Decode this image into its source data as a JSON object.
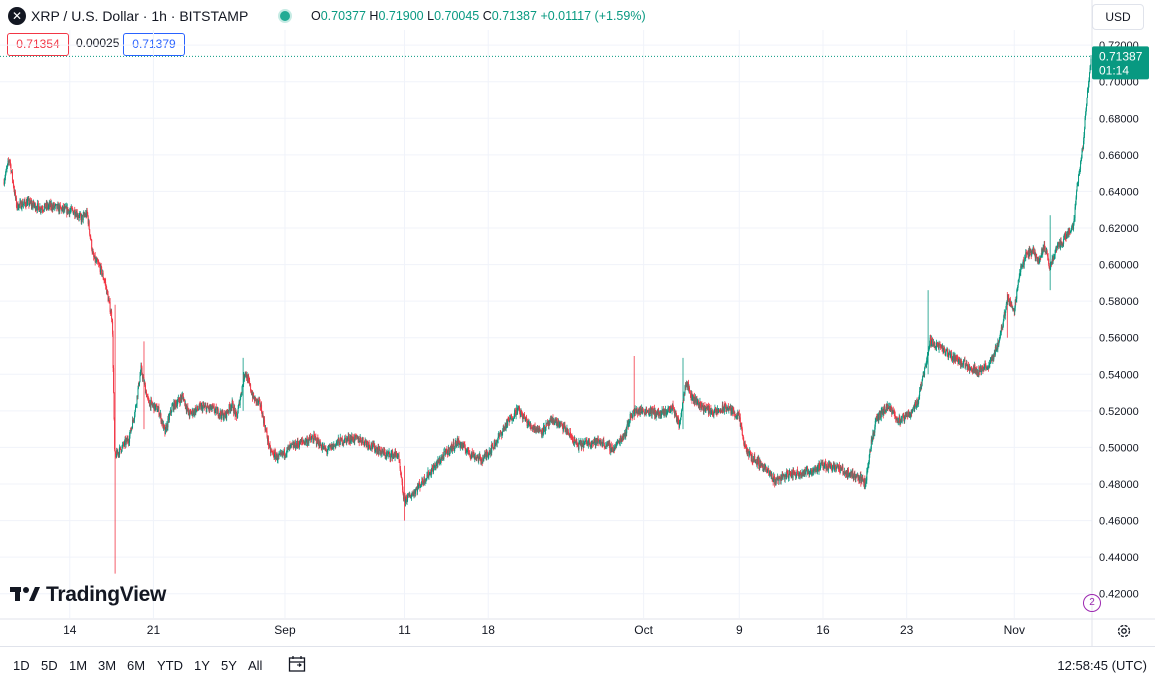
{
  "header": {
    "symbol_icon": "x-logo-icon",
    "title": "XRP / U.S. Dollar · 1h · BITSTAMP",
    "ohlc": {
      "o_label": "O",
      "o": "0.70377",
      "h_label": "H",
      "h": "0.71900",
      "l_label": "L",
      "l": "0.70045",
      "c_label": "C",
      "c": "0.71387",
      "change": "+0.01117 (+1.59%)"
    },
    "bid": "0.71354",
    "spread": "0.00025",
    "ask": "0.71379",
    "currency": "USD"
  },
  "colors": {
    "up": "#089981",
    "down": "#f23645",
    "price_tag": "#089981",
    "grid": "#f0f3fa"
  },
  "price_tag": {
    "price": "0.71387",
    "countdown": "01:14"
  },
  "branding": {
    "name": "TradingView"
  },
  "bottom": {
    "timeframes": [
      "1D",
      "5D",
      "1M",
      "3M",
      "6M",
      "YTD",
      "1Y",
      "5Y",
      "All"
    ],
    "clock": "12:58:45 (UTC)"
  },
  "chart_data": {
    "type": "candlestick",
    "interval": "1h",
    "ylim": [
      0.41,
      0.725
    ],
    "y_ticks": [
      "0.42000",
      "0.44000",
      "0.46000",
      "0.48000",
      "0.50000",
      "0.52000",
      "0.54000",
      "0.56000",
      "0.58000",
      "0.60000",
      "0.62000",
      "0.64000",
      "0.66000",
      "0.68000",
      "0.70000",
      "0.72000"
    ],
    "x_ticks": [
      {
        "label": "14",
        "day": 14
      },
      {
        "label": "21",
        "day": 21
      },
      {
        "label": "Sep",
        "day": 32
      },
      {
        "label": "11",
        "day": 42
      },
      {
        "label": "18",
        "day": 49
      },
      {
        "label": "Oct",
        "day": 62
      },
      {
        "label": "9",
        "day": 70
      },
      {
        "label": "16",
        "day": 77
      },
      {
        "label": "23",
        "day": 84
      },
      {
        "label": "Nov",
        "day": 93
      }
    ],
    "x_domain_days": [
      8.5,
      99.5
    ],
    "close_path": [
      [
        8.5,
        0.645
      ],
      [
        9.0,
        0.658
      ],
      [
        9.6,
        0.632
      ],
      [
        10.5,
        0.634
      ],
      [
        11.5,
        0.631
      ],
      [
        12.5,
        0.632
      ],
      [
        13.5,
        0.63
      ],
      [
        14.5,
        0.629
      ],
      [
        15.0,
        0.625
      ],
      [
        15.5,
        0.628
      ],
      [
        16.0,
        0.604
      ],
      [
        16.6,
        0.598
      ],
      [
        17.0,
        0.59
      ],
      [
        17.6,
        0.57
      ],
      [
        17.8,
        0.495
      ],
      [
        18.4,
        0.5
      ],
      [
        19.0,
        0.505
      ],
      [
        19.5,
        0.52
      ],
      [
        20.0,
        0.543
      ],
      [
        20.6,
        0.525
      ],
      [
        21.5,
        0.52
      ],
      [
        22.0,
        0.508
      ],
      [
        22.6,
        0.522
      ],
      [
        23.5,
        0.528
      ],
      [
        24.0,
        0.518
      ],
      [
        25.0,
        0.522
      ],
      [
        26.0,
        0.521
      ],
      [
        27.0,
        0.517
      ],
      [
        27.6,
        0.524
      ],
      [
        28.0,
        0.516
      ],
      [
        28.7,
        0.542
      ],
      [
        29.4,
        0.527
      ],
      [
        30.0,
        0.523
      ],
      [
        30.8,
        0.498
      ],
      [
        31.5,
        0.494
      ],
      [
        32.5,
        0.5
      ],
      [
        33.5,
        0.503
      ],
      [
        34.5,
        0.505
      ],
      [
        35.5,
        0.498
      ],
      [
        36.5,
        0.503
      ],
      [
        37.5,
        0.505
      ],
      [
        38.5,
        0.504
      ],
      [
        39.5,
        0.5
      ],
      [
        40.5,
        0.496
      ],
      [
        41.5,
        0.496
      ],
      [
        42.0,
        0.471
      ],
      [
        42.6,
        0.474
      ],
      [
        43.5,
        0.481
      ],
      [
        44.5,
        0.489
      ],
      [
        45.5,
        0.497
      ],
      [
        46.5,
        0.503
      ],
      [
        47.5,
        0.497
      ],
      [
        48.5,
        0.493
      ],
      [
        49.5,
        0.501
      ],
      [
        50.5,
        0.512
      ],
      [
        51.5,
        0.521
      ],
      [
        52.5,
        0.512
      ],
      [
        53.5,
        0.509
      ],
      [
        54.5,
        0.515
      ],
      [
        55.5,
        0.51
      ],
      [
        56.5,
        0.501
      ],
      [
        57.5,
        0.503
      ],
      [
        58.5,
        0.503
      ],
      [
        59.5,
        0.499
      ],
      [
        60.5,
        0.508
      ],
      [
        61.0,
        0.518
      ],
      [
        61.5,
        0.52
      ],
      [
        62.5,
        0.52
      ],
      [
        63.5,
        0.518
      ],
      [
        64.5,
        0.522
      ],
      [
        65.0,
        0.512
      ],
      [
        65.6,
        0.537
      ],
      [
        66.0,
        0.528
      ],
      [
        67.0,
        0.522
      ],
      [
        68.0,
        0.519
      ],
      [
        69.0,
        0.522
      ],
      [
        70.0,
        0.517
      ],
      [
        70.5,
        0.5
      ],
      [
        71.0,
        0.495
      ],
      [
        72.0,
        0.49
      ],
      [
        73.0,
        0.482
      ],
      [
        74.0,
        0.485
      ],
      [
        75.0,
        0.486
      ],
      [
        76.0,
        0.487
      ],
      [
        77.0,
        0.49
      ],
      [
        78.0,
        0.49
      ],
      [
        79.0,
        0.486
      ],
      [
        80.0,
        0.484
      ],
      [
        80.6,
        0.48
      ],
      [
        81.0,
        0.5
      ],
      [
        81.5,
        0.515
      ],
      [
        82.0,
        0.519
      ],
      [
        82.5,
        0.522
      ],
      [
        83.5,
        0.514
      ],
      [
        84.5,
        0.52
      ],
      [
        85.0,
        0.526
      ],
      [
        85.6,
        0.545
      ],
      [
        86.0,
        0.558
      ],
      [
        86.6,
        0.556
      ],
      [
        87.5,
        0.551
      ],
      [
        88.0,
        0.549
      ],
      [
        89.0,
        0.545
      ],
      [
        90.0,
        0.542
      ],
      [
        91.0,
        0.545
      ],
      [
        91.8,
        0.559
      ],
      [
        92.5,
        0.582
      ],
      [
        93.0,
        0.574
      ],
      [
        93.5,
        0.596
      ],
      [
        94.0,
        0.605
      ],
      [
        94.6,
        0.608
      ],
      [
        95.0,
        0.602
      ],
      [
        95.6,
        0.61
      ],
      [
        96.0,
        0.598
      ],
      [
        96.6,
        0.61
      ],
      [
        97.0,
        0.612
      ],
      [
        97.5,
        0.617
      ],
      [
        98.0,
        0.622
      ],
      [
        98.4,
        0.648
      ],
      [
        98.8,
        0.665
      ],
      [
        99.1,
        0.69
      ],
      [
        99.5,
        0.7139
      ]
    ],
    "spikes": [
      {
        "day": 17.8,
        "low": 0.431,
        "high": 0.578
      },
      {
        "day": 20.2,
        "low": 0.51,
        "high": 0.558
      },
      {
        "day": 28.5,
        "low": 0.52,
        "high": 0.549
      },
      {
        "day": 42.0,
        "low": 0.46,
        "high": 0.49
      },
      {
        "day": 61.2,
        "low": 0.515,
        "high": 0.55
      },
      {
        "day": 65.3,
        "low": 0.51,
        "high": 0.549
      },
      {
        "day": 85.8,
        "low": 0.54,
        "high": 0.586
      },
      {
        "day": 92.4,
        "low": 0.56,
        "high": 0.585
      },
      {
        "day": 96.0,
        "low": 0.586,
        "high": 0.627
      },
      {
        "day": 99.5,
        "low": 0.7,
        "high": 0.719
      }
    ],
    "last": {
      "open": 0.70377,
      "high": 0.719,
      "low": 0.70045,
      "close": 0.71387
    }
  }
}
